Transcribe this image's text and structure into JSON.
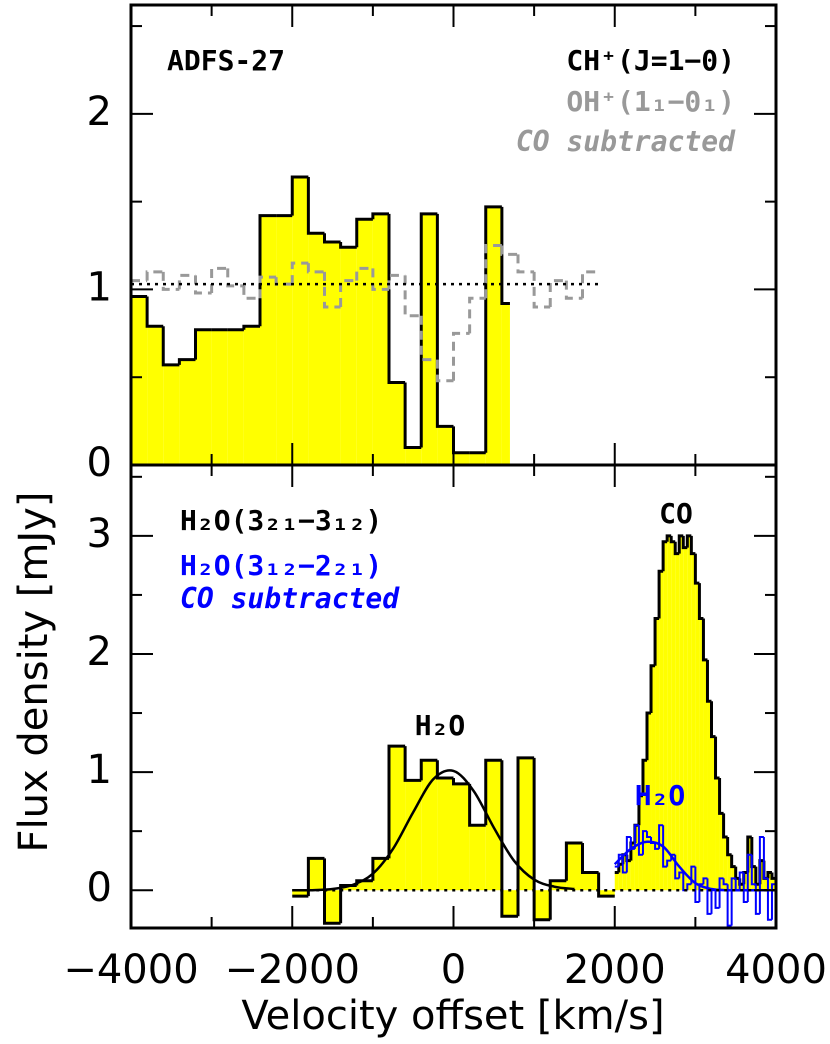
{
  "chart_data": [
    {
      "type": "histogram",
      "title": "ADFS-27",
      "xlim": [
        -4000,
        4000
      ],
      "ylim": [
        0,
        2.62
      ],
      "xticks": [
        -4000,
        -2000,
        0,
        2000,
        4000
      ],
      "xminorticks": [
        -3000,
        -1000,
        1000,
        3000
      ],
      "yticks": [
        0,
        1,
        2
      ],
      "yminorticks": [
        0.5,
        1.5,
        2.5
      ],
      "show_xtick_labels": false,
      "legend": "upper right",
      "series": [
        {
          "name": "CH⁺(J=1−0)",
          "color": "#000000",
          "fill": "#ffff00",
          "style": "filled-step",
          "bins": [
            -4000,
            -3800,
            -3600,
            -3400,
            -3200,
            -3000,
            -2800,
            -2600,
            -2400,
            -2200,
            -2000,
            -1800,
            -1600,
            -1400,
            -1200,
            -1000,
            -800,
            -600,
            -400,
            -200,
            0,
            200,
            400,
            600,
            700
          ],
          "values": [
            0.96,
            0.79,
            0.57,
            0.6,
            0.77,
            0.77,
            0.77,
            0.79,
            1.42,
            1.42,
            1.64,
            1.32,
            1.27,
            1.24,
            1.4,
            1.43,
            0.47,
            0.1,
            1.43,
            0.22,
            0.07,
            0.07,
            1.47,
            0.92
          ]
        },
        {
          "name": "OH⁺(1₁−0₁)",
          "color": "#999999",
          "style": "dashed-step",
          "bins": [
            -4000,
            -3800,
            -3600,
            -3400,
            -3200,
            -3000,
            -2800,
            -2600,
            -2400,
            -2200,
            -2000,
            -1800,
            -1600,
            -1400,
            -1200,
            -1000,
            -800,
            -600,
            -400,
            -200,
            0,
            200,
            400,
            600,
            800,
            1000,
            1200,
            1400,
            1600,
            1800
          ],
          "values": [
            1.05,
            1.1,
            1.0,
            1.08,
            0.98,
            1.12,
            1.02,
            0.95,
            1.07,
            1.03,
            1.15,
            1.1,
            0.9,
            1.05,
            1.12,
            1.0,
            1.08,
            0.85,
            0.6,
            0.48,
            0.75,
            0.95,
            1.25,
            1.2,
            1.1,
            0.9,
            1.05,
            0.95,
            1.1
          ]
        },
        {
          "color": "#000000",
          "style": "dotted",
          "x": [
            -4000,
            1800
          ],
          "values": [
            1.03,
            1.03
          ]
        }
      ],
      "annotations": [
        {
          "text": "CO subtracted",
          "color": "#999999",
          "italic": true
        }
      ]
    },
    {
      "type": "histogram",
      "xlabel": "Velocity offset [km/s]",
      "ylabel": "Flux density [mJy]",
      "xlim": [
        -4000,
        4000
      ],
      "ylim": [
        -0.32,
        3.6
      ],
      "xticks": [
        {
          "value": -4000,
          "label": "−4000"
        },
        {
          "value": -2000,
          "label": "−2000"
        },
        0,
        2000,
        4000
      ],
      "xminorticks": [
        -3000,
        -1000,
        1000,
        3000
      ],
      "yticks": [
        0,
        1,
        2,
        3
      ],
      "yminorticks": [
        0.5,
        1.5,
        2.5,
        3.5
      ],
      "show_xtick_labels": true,
      "legend": "upper left",
      "series": [
        {
          "name": "H₂O(3₂₁−3₁₂)",
          "color": "#000000",
          "fill": "#ffff00",
          "style": "filled-step",
          "bins": [
            -2000,
            -1800,
            -1600,
            -1400,
            -1200,
            -1000,
            -800,
            -600,
            -400,
            -200,
            0,
            200,
            400,
            600,
            800,
            1000,
            1200,
            1400,
            1600,
            1800,
            2000
          ],
          "values": [
            -0.05,
            0.27,
            -0.28,
            0.04,
            0.08,
            0.27,
            1.22,
            0.93,
            1.1,
            0.95,
            0.9,
            0.55,
            1.1,
            -0.22,
            1.12,
            -0.25,
            0.08,
            0.4,
            0.15,
            -0.05
          ]
        },
        {
          "color": "#000000",
          "fill": "#ffff00",
          "style": "filled-step",
          "bins": [
            2000,
            2050,
            2100,
            2150,
            2200,
            2250,
            2300,
            2350,
            2400,
            2450,
            2500,
            2550,
            2600,
            2650,
            2700,
            2750,
            2800,
            2850,
            2900,
            2950,
            3000,
            3050,
            3100,
            3150,
            3200,
            3250,
            3300,
            3350,
            3400,
            3450,
            3500,
            3550,
            3600,
            3650,
            3700,
            3750,
            3800,
            3850,
            3900,
            3950,
            4000
          ],
          "values": [
            0.15,
            0.22,
            0.3,
            0.25,
            0.4,
            0.55,
            0.8,
            1.1,
            1.5,
            1.9,
            2.3,
            2.7,
            2.95,
            3.0,
            2.95,
            2.85,
            3.0,
            2.9,
            3.0,
            2.85,
            2.6,
            2.3,
            1.95,
            1.6,
            1.3,
            0.95,
            0.65,
            0.45,
            0.3,
            0.2,
            0.1,
            0.05,
            0.15,
            0.45,
            0.2,
            0.05,
            0.25,
            0.1,
            0.15,
            0.1
          ]
        },
        {
          "name": "H₂O(3₁₂−2₂₁)",
          "color": "#0000ff",
          "style": "step",
          "bins": [
            2000,
            2050,
            2100,
            2150,
            2200,
            2250,
            2300,
            2350,
            2400,
            2450,
            2500,
            2550,
            2600,
            2650,
            2700,
            2750,
            2800,
            2850,
            2900,
            2950,
            3000,
            3050,
            3100,
            3150,
            3200,
            3250,
            3300,
            3350,
            3400,
            3450,
            3500,
            3550,
            3600,
            3650,
            3700,
            3750,
            3800,
            3850,
            3900,
            3950,
            4000
          ],
          "values": [
            0.2,
            0.3,
            0.15,
            0.45,
            0.35,
            0.55,
            0.3,
            0.5,
            0.45,
            0.4,
            0.35,
            0.55,
            0.2,
            0.25,
            0.3,
            0.1,
            0.15,
            0.0,
            0.05,
            0.2,
            -0.1,
            0.05,
            0.1,
            -0.2,
            0.0,
            -0.15,
            0.1,
            0.05,
            -0.3,
            0.1,
            0.0,
            0.15,
            -0.1,
            0.3,
            0.05,
            -0.2,
            0.45,
            0.1,
            -0.25,
            0.05
          ]
        },
        {
          "color": "#000000",
          "style": "line",
          "x": [
            -2000,
            -1750,
            -1500,
            -1250,
            -1000,
            -750,
            -500,
            -250,
            0,
            250,
            500,
            750,
            1000,
            1250,
            1500
          ],
          "values": [
            0.0,
            0.0,
            0.01,
            0.045,
            0.14,
            0.35,
            0.66,
            0.94,
            1.01,
            0.84,
            0.53,
            0.25,
            0.09,
            0.03,
            0.01
          ]
        },
        {
          "color": "#0000ff",
          "style": "line",
          "x": [
            2000,
            2200,
            2400,
            2600,
            2800,
            3000,
            3200,
            3400,
            3600,
            3800,
            4000
          ],
          "values": [
            0.22,
            0.35,
            0.41,
            0.37,
            0.2,
            0.06,
            0.01,
            0,
            0,
            0,
            0
          ]
        },
        {
          "color": "#000000",
          "style": "dotted",
          "x": [
            -2000,
            4000
          ],
          "values": [
            0,
            0
          ]
        }
      ],
      "annotations": [
        {
          "text": "CO subtracted",
          "color": "#0000ff",
          "italic": true
        },
        {
          "text": "CO",
          "color": "#000000"
        },
        {
          "text": "H₂O",
          "color": "#000000"
        },
        {
          "text": "H₂O",
          "color": "#0000ff"
        }
      ]
    }
  ]
}
